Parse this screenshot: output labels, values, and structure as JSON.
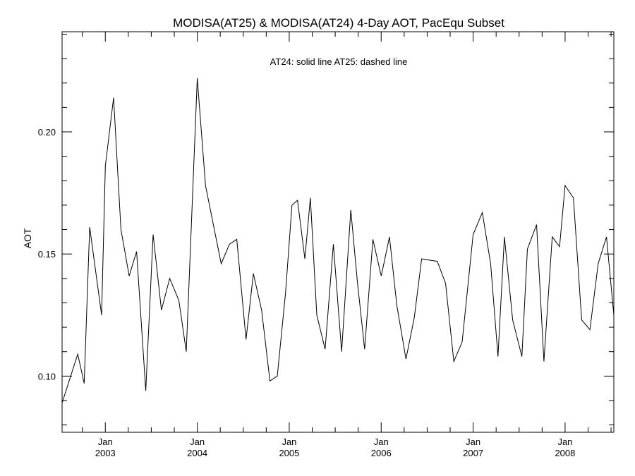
{
  "chart_data": {
    "type": "line",
    "title": "MODISA(AT25) & MODISA(AT24) 4-Day AOT, PacEqu Subset",
    "annotation": "AT24: solid line   AT25: dashed line",
    "ylabel": "AOT",
    "xlabel": "",
    "xlim": [
      2002.53,
      2008.53
    ],
    "ylim": [
      0.077,
      0.241
    ],
    "yticks": [
      0.1,
      0.15,
      0.2
    ],
    "ytick_labels": [
      "0.10",
      "0.15",
      "0.20"
    ],
    "y_minor_step": 0.01,
    "x_month_step": 3,
    "xticks": [
      2003.0,
      2004.0,
      2005.0,
      2006.0,
      2007.0,
      2008.0
    ],
    "xtick_labels_top": [
      "Jan",
      "Jan",
      "Jan",
      "Jan",
      "Jan",
      "Jan"
    ],
    "xtick_labels_bottom": [
      "2003",
      "2004",
      "2005",
      "2006",
      "2007",
      "2008"
    ],
    "grid": false,
    "series": [
      {
        "name": "AT24",
        "style": "solid",
        "x": [
          2002.53,
          2002.7,
          2002.77,
          2002.83,
          2002.96,
          2003.0,
          2003.09,
          2003.17,
          2003.26,
          2003.34,
          2003.44,
          2003.52,
          2003.61,
          2003.7,
          2003.8,
          2003.88,
          2004.0,
          2004.09,
          2004.18,
          2004.26,
          2004.35,
          2004.43,
          2004.53,
          2004.61,
          2004.7,
          2004.79,
          2004.87,
          2004.96,
          2005.03,
          2005.09,
          2005.17,
          2005.23,
          2005.3,
          2005.39,
          2005.48,
          2005.57,
          2005.67,
          2005.74,
          2005.82,
          2005.91,
          2006.0,
          2006.04,
          2006.09,
          2006.17,
          2006.27,
          2006.36,
          2006.44,
          2006.61,
          2006.7,
          2006.79,
          2006.88,
          2007.0,
          2007.1,
          2007.19,
          2007.27,
          2007.34,
          2007.43,
          2007.53,
          2007.59,
          2007.69,
          2007.77,
          2007.86,
          2007.94,
          2008.0,
          2008.09,
          2008.18,
          2008.27,
          2008.36,
          2008.45,
          2008.53
        ],
        "y": [
          0.089,
          0.109,
          0.097,
          0.161,
          0.125,
          0.186,
          0.214,
          0.16,
          0.141,
          0.151,
          0.094,
          0.158,
          0.127,
          0.14,
          0.131,
          0.11,
          0.222,
          0.178,
          0.161,
          0.146,
          0.154,
          0.156,
          0.115,
          0.142,
          0.127,
          0.098,
          0.1,
          0.134,
          0.17,
          0.172,
          0.148,
          0.173,
          0.125,
          0.111,
          0.154,
          0.11,
          0.168,
          0.139,
          0.111,
          0.156,
          0.141,
          0.148,
          0.157,
          0.129,
          0.107,
          0.124,
          0.148,
          0.147,
          0.138,
          0.106,
          0.114,
          0.158,
          0.167,
          0.146,
          0.108,
          0.157,
          0.123,
          0.108,
          0.152,
          0.162,
          0.106,
          0.157,
          0.153,
          0.178,
          0.173,
          0.123,
          0.119,
          0.146,
          0.157,
          0.125
        ]
      }
    ]
  }
}
